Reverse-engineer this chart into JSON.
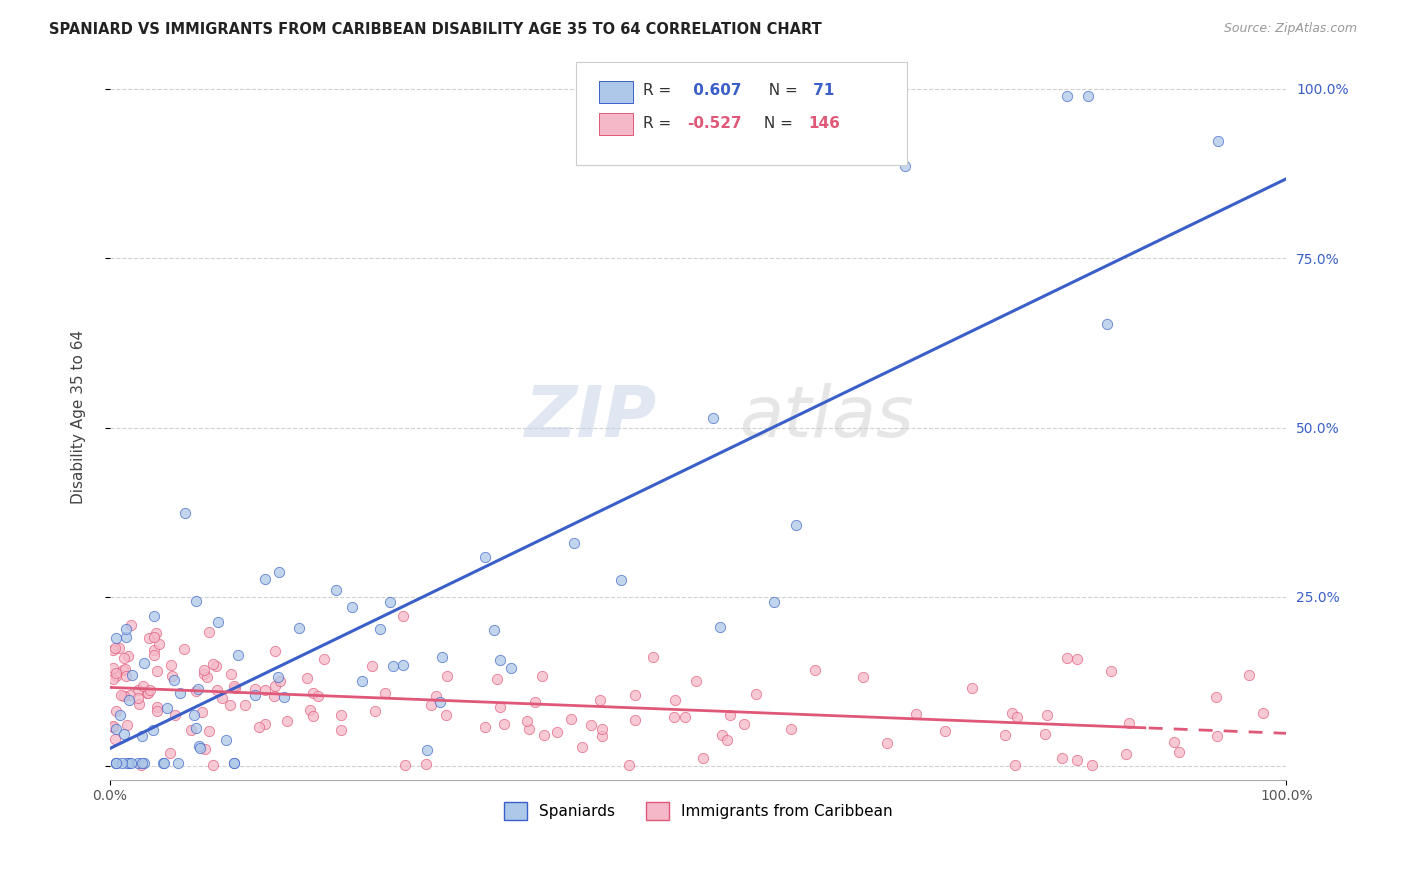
{
  "title": "SPANIARD VS IMMIGRANTS FROM CARIBBEAN DISABILITY AGE 35 TO 64 CORRELATION CHART",
  "source": "Source: ZipAtlas.com",
  "ylabel": "Disability Age 35 to 64",
  "legend_label1": "Spaniards",
  "legend_label2": "Immigrants from Caribbean",
  "R1": 0.607,
  "N1": 71,
  "R2": -0.527,
  "N2": 146,
  "color1": "#adc8e8",
  "color2": "#f5b8c8",
  "line_color1": "#3a5fc8",
  "line_color2": "#e05878",
  "watermark_zip": "ZIP",
  "watermark_atlas": "atlas",
  "background_color": "#ffffff",
  "grid_color": "#cccccc",
  "seed1": 42,
  "seed2": 99
}
